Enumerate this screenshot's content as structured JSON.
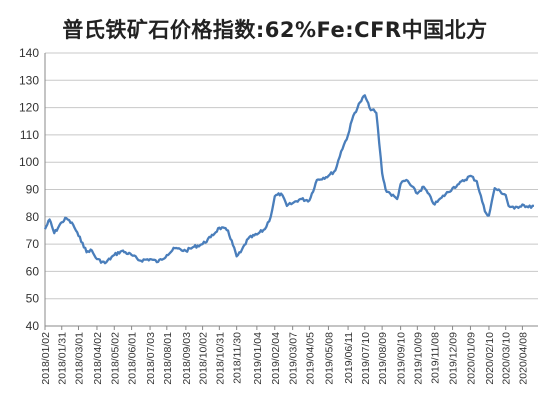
{
  "chart_data": {
    "type": "line",
    "title": "普氏铁矿石价格指数:62%Fe:CFR中国北方",
    "xlabel": "",
    "ylabel": "",
    "ylim": [
      40,
      140
    ],
    "yticks": [
      40,
      50,
      60,
      70,
      80,
      90,
      100,
      110,
      120,
      130,
      140
    ],
    "grid": true,
    "legend": "none",
    "line_color": "#4a7ebb",
    "x_tick_labels": [
      "2018/01/02",
      "2018/01/31",
      "2018/03/01",
      "2018/04/02",
      "2018/05/02",
      "2018/06/01",
      "2018/07/03",
      "2018/08/01",
      "2018/09/03",
      "2018/10/02",
      "2018/10/31",
      "2018/11/30",
      "2019/01/04",
      "2019/02/04",
      "2019/03/07",
      "2019/04/05",
      "2019/05/08",
      "2019/06/11",
      "2019/07/10",
      "2019/08/09",
      "2019/09/10",
      "2019/10/09",
      "2019/11/08",
      "2019/12/09",
      "2020/01/09",
      "2020/02/10",
      "2020/03/10",
      "2020/04/08"
    ],
    "series": [
      {
        "x": [
          "2018/01/02",
          "2018/01/10",
          "2018/01/18",
          "2018/01/31",
          "2018/02/08",
          "2018/02/20",
          "2018/03/01",
          "2018/03/08",
          "2018/03/15",
          "2018/03/22",
          "2018/04/02",
          "2018/04/16",
          "2018/05/02",
          "2018/05/15",
          "2018/06/01",
          "2018/06/15",
          "2018/07/03",
          "2018/07/17",
          "2018/08/01",
          "2018/08/15",
          "2018/09/03",
          "2018/09/17",
          "2018/10/02",
          "2018/10/16",
          "2018/10/31",
          "2018/11/15",
          "2018/11/30",
          "2018/12/07",
          "2018/12/20",
          "2019/01/04",
          "2019/01/18",
          "2019/01/28",
          "2019/02/04",
          "2019/02/15",
          "2019/02/25",
          "2019/03/07",
          "2019/03/20",
          "2019/04/05",
          "2019/04/18",
          "2019/05/08",
          "2019/05/20",
          "2019/05/30",
          "2019/06/11",
          "2019/06/20",
          "2019/07/02",
          "2019/07/10",
          "2019/07/18",
          "2019/07/30",
          "2019/08/09",
          "2019/08/15",
          "2019/08/23",
          "2019/09/04",
          "2019/09/10",
          "2019/09/20",
          "2019/10/09",
          "2019/10/20",
          "2019/11/08",
          "2019/11/20",
          "2019/12/09",
          "2019/12/20",
          "2020/01/09",
          "2020/01/20",
          "2020/02/03",
          "2020/02/10",
          "2020/02/20",
          "2020/03/10",
          "2020/03/15",
          "2020/03/25",
          "2020/04/08",
          "2020/04/18",
          "2020/04/28"
        ],
        "y": [
          75.5,
          79.0,
          74.0,
          78.0,
          79.5,
          77.0,
          73.0,
          70.5,
          67.0,
          68.0,
          64.5,
          63.0,
          66.0,
          67.5,
          66.0,
          64.0,
          64.5,
          63.5,
          66.0,
          68.5,
          67.5,
          69.0,
          70.0,
          72.5,
          76.0,
          75.0,
          65.5,
          67.0,
          72.0,
          73.5,
          75.5,
          80.0,
          87.5,
          88.5,
          84.0,
          85.0,
          86.5,
          86.0,
          93.5,
          95.0,
          97.0,
          104.0,
          110.0,
          117.0,
          122.0,
          124.5,
          120.0,
          118.0,
          96.0,
          90.0,
          88.5,
          86.5,
          92.0,
          93.5,
          88.5,
          91.0,
          84.5,
          87.0,
          90.5,
          92.0,
          95.0,
          93.0,
          82.0,
          80.5,
          90.5,
          88.0,
          84.0,
          83.0,
          84.5,
          83.5,
          84.0
        ]
      }
    ]
  }
}
